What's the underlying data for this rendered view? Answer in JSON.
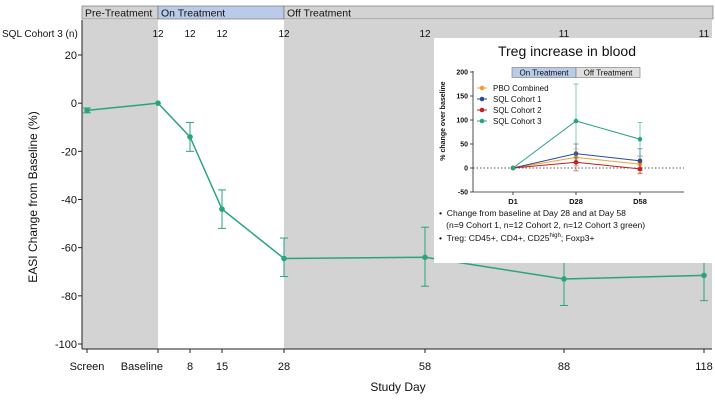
{
  "colors": {
    "phase_bg": "#d3d3d3",
    "on_treatment_band": "#b9cbe8",
    "main_line": "#2aa57a",
    "pbo": "#f0a030",
    "sql1": "#2a4aa0",
    "sql2": "#c02020",
    "sql3": "#2aa57a"
  },
  "phase_bands": [
    {
      "label": "Pre-Treatment"
    },
    {
      "label": "On Treatment"
    },
    {
      "label": "Off Treatment"
    }
  ],
  "n_row": {
    "label": "SQL Cohort 3 (n)",
    "values": [
      "12",
      "12",
      "12",
      "12",
      "12",
      "11",
      "11"
    ]
  },
  "chart_data": [
    {
      "type": "line",
      "xlabel": "Study Day",
      "ylabel": "EASI Change from Baseline (%)",
      "ylim": [
        -100,
        20
      ],
      "yticks": [
        20,
        0,
        -20,
        -40,
        -60,
        -80,
        -100
      ],
      "x_tick_labels": [
        "Screen",
        "Baseline",
        "8",
        "15",
        "28",
        "58",
        "88",
        "118"
      ],
      "grid": false,
      "series": [
        {
          "x": [
            "Screen",
            "Baseline",
            "8",
            "15",
            "28",
            "58",
            "88",
            "118"
          ],
          "values": [
            -3,
            0,
            -14,
            -44,
            -64.5,
            -64,
            -73,
            -71.5
          ],
          "err_low": [
            -4,
            0,
            -20,
            -52,
            -72,
            -76,
            -84,
            -82
          ],
          "err_high": [
            -2,
            0,
            -8,
            -36,
            -56,
            -51.5,
            -62.5,
            -61
          ]
        }
      ]
    },
    {
      "type": "line",
      "title": "Treg increase in blood",
      "ylabel": "% change over baseline",
      "ylim": [
        -50,
        200
      ],
      "yticks": [
        200,
        150,
        100,
        50,
        0,
        -50
      ],
      "categories": [
        "D1",
        "D28",
        "D58"
      ],
      "band_labels": [
        "On Treatment",
        "Off Treatment"
      ],
      "legend_position": "top-left",
      "series": [
        {
          "name": "PBO Combined",
          "values": [
            0,
            22,
            8
          ],
          "err_low": [
            0,
            5,
            -10
          ],
          "err_high": [
            0,
            40,
            25
          ]
        },
        {
          "name": "SQL Cohort 1",
          "values": [
            0,
            30,
            15
          ],
          "err_low": [
            0,
            10,
            -5
          ],
          "err_high": [
            0,
            50,
            40
          ]
        },
        {
          "name": "SQL Cohort 2",
          "values": [
            0,
            12,
            -2
          ],
          "err_low": [
            0,
            -6,
            -12
          ],
          "err_high": [
            0,
            30,
            12
          ]
        },
        {
          "name": "SQL Cohort 3",
          "values": [
            0,
            98,
            60
          ],
          "err_low": [
            0,
            22,
            25
          ],
          "err_high": [
            0,
            175,
            95
          ]
        }
      ],
      "notes": [
        "Change from baseline at Day 28 and at Day 58",
        "(n=9 Cohort 1, n=12 Cohort 2, n=12 Cohort 3 green)",
        "Treg: CD45+, CD4+, CD25",
        "high",
        "; Foxp3+"
      ]
    }
  ]
}
